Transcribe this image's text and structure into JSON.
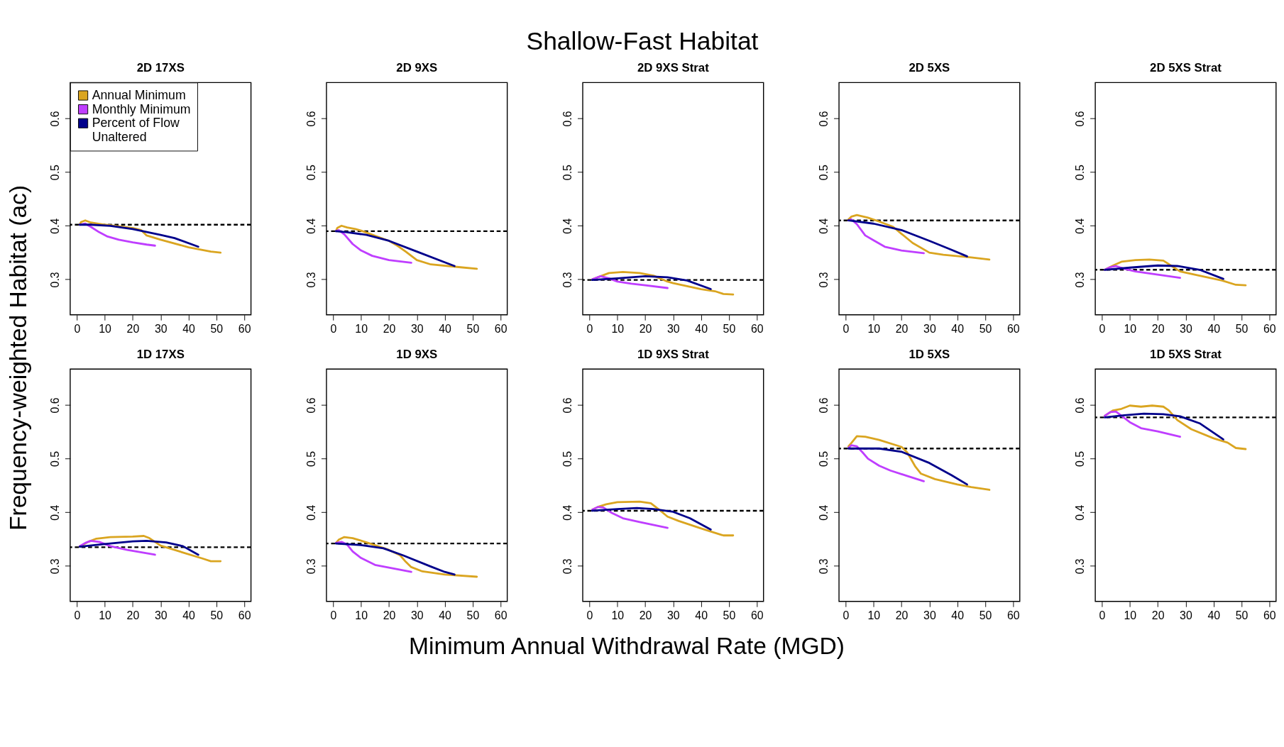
{
  "chart_data": [
    {
      "type": "other",
      "title": "Shallow-Fast Habitat",
      "xlabel": "Minimum Annual Withdrawal Rate (MGD)",
      "ylabel": "Frequency-weighted Habitat (ac)"
    },
    {
      "type": "line",
      "title": "2D 17XS",
      "xlim": [
        -2.4,
        62.4
      ],
      "ylim": [
        0.234,
        0.667
      ],
      "xticks": [
        0,
        10,
        20,
        30,
        40,
        50,
        60
      ],
      "yticks": [
        0.3,
        0.4,
        0.5,
        0.6
      ],
      "grid": false,
      "legend": "top left",
      "line_style": "solid",
      "ref_lines": [
        {
          "axis": "y",
          "value": 0.402,
          "color": "#000000",
          "line_style": "dashed"
        }
      ],
      "series": [
        {
          "name": "Annual Minimum",
          "color": "#daa520",
          "x": [
            1,
            1.5,
            3,
            5,
            10,
            20,
            23,
            25,
            30,
            40,
            48,
            51.5
          ],
          "values": [
            0.402,
            0.407,
            0.41,
            0.406,
            0.402,
            0.396,
            0.392,
            0.382,
            0.374,
            0.36,
            0.352,
            0.35
          ]
        },
        {
          "name": "Monthly Minimum",
          "color": "#bf3eff",
          "x": [
            1,
            3,
            5,
            8,
            11,
            15,
            20,
            25,
            28
          ],
          "values": [
            0.402,
            0.404,
            0.398,
            0.388,
            0.38,
            0.374,
            0.369,
            0.365,
            0.363
          ]
        },
        {
          "name": "Percent of Flow\nUnaltered",
          "color": "#00008b",
          "x": [
            1,
            5,
            12,
            20,
            30,
            35,
            43.5
          ],
          "values": [
            0.402,
            0.402,
            0.4,
            0.394,
            0.383,
            0.377,
            0.361
          ]
        }
      ]
    },
    {
      "type": "line",
      "title": "2D 9XS",
      "xlim": [
        -2.4,
        62.4
      ],
      "ylim": [
        0.234,
        0.667
      ],
      "xticks": [
        0,
        10,
        20,
        30,
        40,
        50,
        60
      ],
      "yticks": [
        0.3,
        0.4,
        0.5,
        0.6
      ],
      "grid": false,
      "line_style": "solid",
      "ref_lines": [
        {
          "axis": "y",
          "value": 0.39,
          "color": "#000000",
          "line_style": "dashed"
        }
      ],
      "series": [
        {
          "color": "#daa520",
          "x": [
            1,
            1.5,
            3,
            5,
            8,
            10,
            20,
            23,
            26,
            30,
            35,
            45,
            51.5
          ],
          "values": [
            0.39,
            0.396,
            0.4,
            0.397,
            0.394,
            0.391,
            0.372,
            0.363,
            0.352,
            0.336,
            0.328,
            0.323,
            0.32
          ]
        },
        {
          "color": "#bf3eff",
          "x": [
            1,
            2,
            4,
            7,
            10,
            14,
            20,
            28
          ],
          "values": [
            0.39,
            0.392,
            0.384,
            0.366,
            0.354,
            0.344,
            0.336,
            0.331
          ]
        },
        {
          "color": "#00008b",
          "x": [
            1,
            5,
            12,
            20,
            30,
            40,
            43.5
          ],
          "values": [
            0.39,
            0.388,
            0.383,
            0.372,
            0.352,
            0.332,
            0.325
          ]
        }
      ]
    },
    {
      "type": "line",
      "title": "2D 9XS Strat",
      "xlim": [
        -2.4,
        62.4
      ],
      "ylim": [
        0.234,
        0.667
      ],
      "xticks": [
        0,
        10,
        20,
        30,
        40,
        50,
        60
      ],
      "yticks": [
        0.3,
        0.4,
        0.5,
        0.6
      ],
      "grid": false,
      "line_style": "solid",
      "ref_lines": [
        {
          "axis": "y",
          "value": 0.299,
          "color": "#000000",
          "line_style": "dashed"
        }
      ],
      "series": [
        {
          "color": "#daa520",
          "x": [
            1,
            4,
            7,
            12,
            18,
            23,
            28,
            30,
            40,
            45,
            48,
            51.5
          ],
          "values": [
            0.3,
            0.306,
            0.312,
            0.314,
            0.312,
            0.307,
            0.296,
            0.293,
            0.282,
            0.278,
            0.273,
            0.272
          ]
        },
        {
          "color": "#bf3eff",
          "x": [
            1,
            4,
            7,
            10,
            15,
            20,
            28
          ],
          "values": [
            0.3,
            0.306,
            0.302,
            0.296,
            0.292,
            0.289,
            0.284
          ]
        },
        {
          "color": "#00008b",
          "x": [
            1,
            10,
            20,
            28,
            35,
            43.5
          ],
          "values": [
            0.299,
            0.302,
            0.306,
            0.304,
            0.298,
            0.282
          ]
        }
      ]
    },
    {
      "type": "line",
      "title": "2D 5XS",
      "xlim": [
        -2.4,
        62.4
      ],
      "ylim": [
        0.234,
        0.667
      ],
      "xticks": [
        0,
        10,
        20,
        30,
        40,
        50,
        60
      ],
      "yticks": [
        0.3,
        0.4,
        0.5,
        0.6
      ],
      "grid": false,
      "line_style": "solid",
      "ref_lines": [
        {
          "axis": "y",
          "value": 0.41,
          "color": "#000000",
          "line_style": "dashed"
        }
      ],
      "series": [
        {
          "color": "#daa520",
          "x": [
            1,
            2,
            4,
            8,
            12,
            17,
            20,
            24,
            30,
            35,
            45,
            51.5
          ],
          "values": [
            0.412,
            0.417,
            0.42,
            0.415,
            0.408,
            0.398,
            0.385,
            0.368,
            0.35,
            0.346,
            0.341,
            0.337
          ]
        },
        {
          "color": "#bf3eff",
          "x": [
            1,
            2,
            4,
            7,
            10,
            14,
            20,
            28
          ],
          "values": [
            0.41,
            0.412,
            0.403,
            0.382,
            0.373,
            0.361,
            0.354,
            0.349
          ]
        },
        {
          "color": "#00008b",
          "x": [
            1,
            10,
            20,
            30,
            38,
            43.5
          ],
          "values": [
            0.41,
            0.404,
            0.392,
            0.372,
            0.355,
            0.343
          ]
        }
      ]
    },
    {
      "type": "line",
      "title": "2D 5XS Strat",
      "xlim": [
        -2.4,
        62.4
      ],
      "ylim": [
        0.234,
        0.667
      ],
      "xticks": [
        0,
        10,
        20,
        30,
        40,
        50,
        60
      ],
      "yticks": [
        0.3,
        0.4,
        0.5,
        0.6
      ],
      "grid": false,
      "line_style": "solid",
      "ref_lines": [
        {
          "axis": "y",
          "value": 0.318,
          "color": "#000000",
          "line_style": "dashed"
        }
      ],
      "series": [
        {
          "color": "#daa520",
          "x": [
            1,
            4,
            7,
            12,
            17,
            22,
            25,
            28,
            35,
            43,
            48,
            51.5
          ],
          "values": [
            0.318,
            0.326,
            0.333,
            0.336,
            0.337,
            0.335,
            0.325,
            0.315,
            0.307,
            0.298,
            0.29,
            0.289
          ]
        },
        {
          "color": "#bf3eff",
          "x": [
            1,
            3,
            5,
            8,
            12,
            20,
            28
          ],
          "values": [
            0.318,
            0.323,
            0.325,
            0.32,
            0.315,
            0.309,
            0.303
          ]
        },
        {
          "color": "#00008b",
          "x": [
            1,
            10,
            20,
            27,
            35,
            43.5
          ],
          "values": [
            0.318,
            0.322,
            0.326,
            0.325,
            0.318,
            0.301
          ]
        }
      ]
    },
    {
      "type": "line",
      "title": "1D 17XS",
      "xlim": [
        -2.4,
        62.4
      ],
      "ylim": [
        0.234,
        0.667
      ],
      "xticks": [
        0,
        10,
        20,
        30,
        40,
        50,
        60
      ],
      "yticks": [
        0.3,
        0.4,
        0.5,
        0.6
      ],
      "grid": false,
      "line_style": "solid",
      "ref_lines": [
        {
          "axis": "y",
          "value": 0.335,
          "color": "#000000",
          "line_style": "dashed"
        }
      ],
      "series": [
        {
          "color": "#daa520",
          "x": [
            1,
            4,
            7,
            12,
            20,
            24,
            26,
            30,
            35,
            45,
            48,
            51.5
          ],
          "values": [
            0.336,
            0.345,
            0.351,
            0.354,
            0.355,
            0.356,
            0.352,
            0.338,
            0.33,
            0.314,
            0.309,
            0.309
          ]
        },
        {
          "color": "#bf3eff",
          "x": [
            1,
            3,
            5,
            8,
            12,
            18,
            28
          ],
          "values": [
            0.337,
            0.343,
            0.347,
            0.345,
            0.337,
            0.33,
            0.321
          ]
        },
        {
          "color": "#00008b",
          "x": [
            1,
            10,
            20,
            25,
            32,
            38,
            43.5
          ],
          "values": [
            0.336,
            0.341,
            0.346,
            0.347,
            0.344,
            0.337,
            0.321
          ]
        }
      ]
    },
    {
      "type": "line",
      "title": "1D 9XS",
      "xlim": [
        -2.4,
        62.4
      ],
      "ylim": [
        0.234,
        0.667
      ],
      "xticks": [
        0,
        10,
        20,
        30,
        40,
        50,
        60
      ],
      "yticks": [
        0.3,
        0.4,
        0.5,
        0.6
      ],
      "grid": false,
      "line_style": "solid",
      "ref_lines": [
        {
          "axis": "y",
          "value": 0.342,
          "color": "#000000",
          "line_style": "dashed"
        }
      ],
      "series": [
        {
          "color": "#daa520",
          "x": [
            1,
            2,
            4,
            7,
            12,
            20,
            24,
            26,
            28,
            32,
            40,
            51.5
          ],
          "values": [
            0.343,
            0.349,
            0.354,
            0.352,
            0.344,
            0.33,
            0.32,
            0.308,
            0.298,
            0.29,
            0.284,
            0.28
          ]
        },
        {
          "color": "#bf3eff",
          "x": [
            1,
            3,
            5,
            7,
            10,
            15,
            20,
            28
          ],
          "values": [
            0.343,
            0.345,
            0.34,
            0.327,
            0.315,
            0.302,
            0.297,
            0.289
          ]
        },
        {
          "color": "#00008b",
          "x": [
            1,
            10,
            18,
            25,
            35,
            40,
            43.5
          ],
          "values": [
            0.342,
            0.339,
            0.333,
            0.32,
            0.299,
            0.289,
            0.284
          ]
        }
      ]
    },
    {
      "type": "line",
      "title": "1D 9XS Strat",
      "xlim": [
        -2.4,
        62.4
      ],
      "ylim": [
        0.234,
        0.667
      ],
      "xticks": [
        0,
        10,
        20,
        30,
        40,
        50,
        60
      ],
      "yticks": [
        0.3,
        0.4,
        0.5,
        0.6
      ],
      "grid": false,
      "line_style": "solid",
      "ref_lines": [
        {
          "axis": "y",
          "value": 0.403,
          "color": "#000000",
          "line_style": "dashed"
        }
      ],
      "series": [
        {
          "color": "#daa520",
          "x": [
            1,
            3,
            6,
            10,
            18,
            22,
            25,
            28,
            32,
            40,
            48,
            51.5
          ],
          "values": [
            0.405,
            0.41,
            0.415,
            0.419,
            0.42,
            0.417,
            0.405,
            0.392,
            0.384,
            0.37,
            0.357,
            0.357
          ]
        },
        {
          "color": "#bf3eff",
          "x": [
            1,
            3,
            5,
            8,
            12,
            18,
            28
          ],
          "values": [
            0.405,
            0.41,
            0.409,
            0.399,
            0.389,
            0.382,
            0.371
          ]
        },
        {
          "color": "#00008b",
          "x": [
            1,
            10,
            17,
            23,
            30,
            36,
            43.5
          ],
          "values": [
            0.403,
            0.406,
            0.408,
            0.406,
            0.401,
            0.389,
            0.368
          ]
        }
      ]
    },
    {
      "type": "line",
      "title": "1D 5XS",
      "xlim": [
        -2.4,
        62.4
      ],
      "ylim": [
        0.234,
        0.667
      ],
      "xticks": [
        0,
        10,
        20,
        30,
        40,
        50,
        60
      ],
      "yticks": [
        0.3,
        0.4,
        0.5,
        0.6
      ],
      "grid": false,
      "line_style": "solid",
      "ref_lines": [
        {
          "axis": "y",
          "value": 0.519,
          "color": "#000000",
          "line_style": "dashed"
        }
      ],
      "series": [
        {
          "color": "#daa520",
          "x": [
            1,
            2,
            4,
            7,
            12,
            20,
            22,
            25,
            27,
            32,
            40,
            45,
            51.5
          ],
          "values": [
            0.523,
            0.529,
            0.542,
            0.541,
            0.535,
            0.522,
            0.512,
            0.485,
            0.472,
            0.462,
            0.452,
            0.447,
            0.442
          ]
        },
        {
          "color": "#bf3eff",
          "x": [
            1,
            2,
            4,
            6,
            8,
            12,
            16,
            22,
            28
          ],
          "values": [
            0.52,
            0.525,
            0.523,
            0.512,
            0.5,
            0.487,
            0.478,
            0.468,
            0.458
          ]
        },
        {
          "color": "#00008b",
          "x": [
            1,
            12,
            20,
            30,
            38,
            43.5
          ],
          "values": [
            0.519,
            0.519,
            0.513,
            0.492,
            0.469,
            0.452
          ]
        }
      ]
    },
    {
      "type": "line",
      "title": "1D 5XS Strat",
      "xlim": [
        -2.4,
        62.4
      ],
      "ylim": [
        0.234,
        0.667
      ],
      "xticks": [
        0,
        10,
        20,
        30,
        40,
        50,
        60
      ],
      "yticks": [
        0.3,
        0.4,
        0.5,
        0.6
      ],
      "grid": false,
      "line_style": "solid",
      "ref_lines": [
        {
          "axis": "y",
          "value": 0.577,
          "color": "#000000",
          "line_style": "dashed"
        }
      ],
      "series": [
        {
          "color": "#daa520",
          "x": [
            1,
            4,
            7,
            10,
            14,
            18,
            22,
            24,
            27,
            32,
            40,
            45,
            48,
            51.5
          ],
          "values": [
            0.58,
            0.59,
            0.593,
            0.599,
            0.597,
            0.599,
            0.597,
            0.59,
            0.572,
            0.555,
            0.538,
            0.53,
            0.52,
            0.518
          ]
        },
        {
          "color": "#bf3eff",
          "x": [
            1,
            3,
            5,
            7,
            10,
            14,
            20,
            28
          ],
          "values": [
            0.58,
            0.587,
            0.588,
            0.58,
            0.568,
            0.557,
            0.551,
            0.541
          ]
        },
        {
          "color": "#00008b",
          "x": [
            1,
            8,
            15,
            22,
            28,
            35,
            43.5
          ],
          "values": [
            0.577,
            0.581,
            0.584,
            0.583,
            0.579,
            0.566,
            0.536
          ]
        }
      ]
    }
  ]
}
